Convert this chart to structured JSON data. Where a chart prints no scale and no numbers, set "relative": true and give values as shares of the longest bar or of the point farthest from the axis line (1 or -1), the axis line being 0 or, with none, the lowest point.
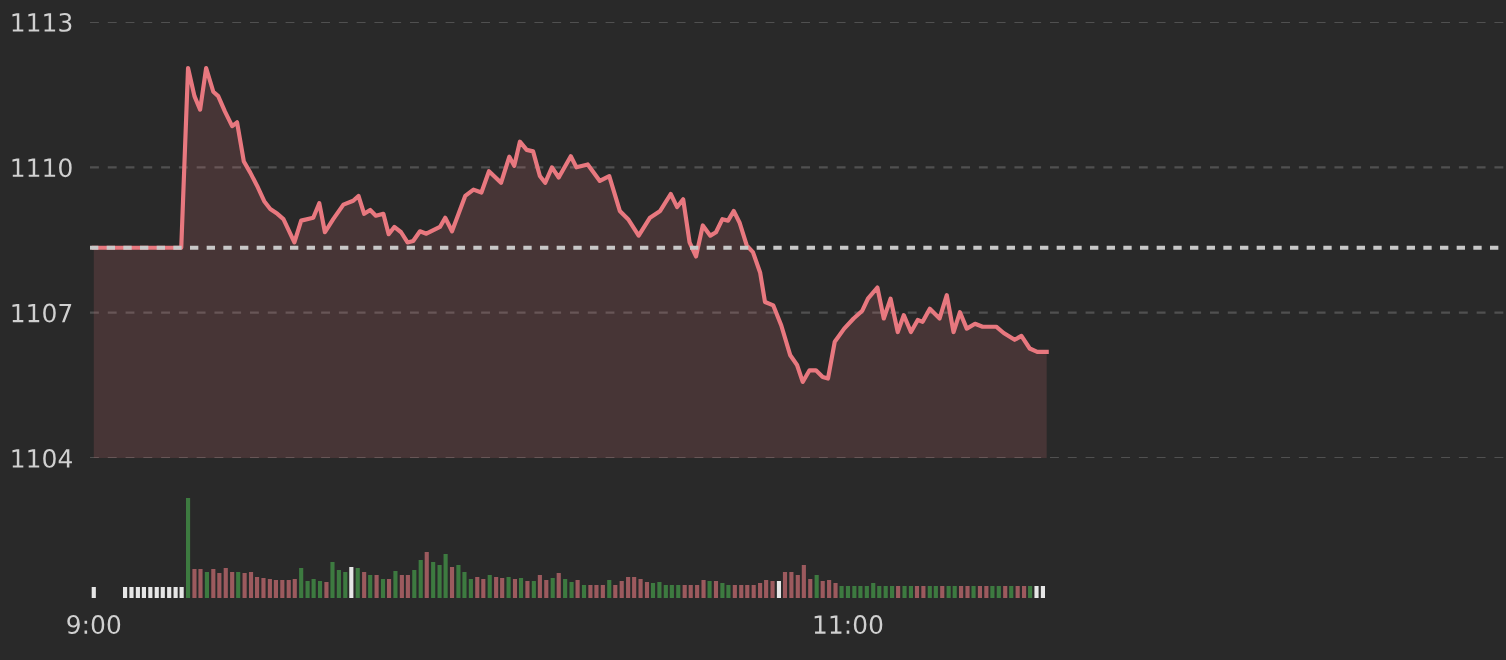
{
  "chart_data": [
    {
      "type": "area",
      "color": "#e8787f",
      "grid": "y",
      "tick_labels": "y",
      "xlim": [
        8.99,
        12.745
      ],
      "ylim": [
        1104,
        1113
      ],
      "yticks": [
        1104,
        1107,
        1110,
        1113
      ],
      "ref_lines": [
        {
          "axis": "y",
          "value": 1108.34,
          "color": "#c8c8c8",
          "line_style": "dotted"
        }
      ],
      "x": [
        9.0,
        9.232,
        9.25,
        9.267,
        9.282,
        9.298,
        9.317,
        9.33,
        9.348,
        9.367,
        9.38,
        9.398,
        9.415,
        9.433,
        9.452,
        9.468,
        9.487,
        9.503,
        9.532,
        9.55,
        9.582,
        9.598,
        9.613,
        9.635,
        9.662,
        9.688,
        9.702,
        9.717,
        9.733,
        9.748,
        9.768,
        9.782,
        9.797,
        9.815,
        9.832,
        9.847,
        9.865,
        9.882,
        9.918,
        9.932,
        9.95,
        9.985,
        10.007,
        10.028,
        10.048,
        10.08,
        10.102,
        10.115,
        10.13,
        10.148,
        10.165,
        10.183,
        10.197,
        10.215,
        10.233,
        10.265,
        10.28,
        10.31,
        10.342,
        10.367,
        10.395,
        10.417,
        10.445,
        10.475,
        10.502,
        10.53,
        10.547,
        10.563,
        10.58,
        10.597,
        10.615,
        10.635,
        10.65,
        10.667,
        10.682,
        10.697,
        10.713,
        10.732,
        10.748,
        10.767,
        10.78,
        10.802,
        10.823,
        10.847,
        10.865,
        10.88,
        10.898,
        10.915,
        10.933,
        10.947,
        10.965,
        10.99,
        11.015,
        11.038,
        11.053,
        11.078,
        11.095,
        11.113,
        11.132,
        11.148,
        11.167,
        11.185,
        11.198,
        11.217,
        11.243,
        11.262,
        11.28,
        11.297,
        11.315,
        11.337,
        11.357,
        11.393,
        11.413,
        11.442,
        11.46,
        11.482,
        11.502,
        11.527
      ],
      "values": [
        1108.34,
        1108.34,
        1112.05,
        1111.47,
        1111.19,
        1112.05,
        1111.56,
        1111.47,
        1111.15,
        1110.85,
        1110.93,
        1110.12,
        1109.89,
        1109.62,
        1109.3,
        1109.14,
        1109.04,
        1108.93,
        1108.45,
        1108.9,
        1108.96,
        1109.26,
        1108.66,
        1108.93,
        1109.23,
        1109.31,
        1109.41,
        1109.04,
        1109.12,
        1109.0,
        1109.04,
        1108.62,
        1108.77,
        1108.66,
        1108.45,
        1108.48,
        1108.68,
        1108.63,
        1108.77,
        1108.96,
        1108.68,
        1109.41,
        1109.54,
        1109.48,
        1109.92,
        1109.68,
        1110.22,
        1110.03,
        1110.53,
        1110.36,
        1110.33,
        1109.82,
        1109.68,
        1110.0,
        1109.79,
        1110.23,
        1110.0,
        1110.06,
        1109.72,
        1109.82,
        1109.1,
        1108.93,
        1108.59,
        1108.96,
        1109.1,
        1109.45,
        1109.18,
        1109.34,
        1108.45,
        1108.16,
        1108.8,
        1108.59,
        1108.66,
        1108.93,
        1108.9,
        1109.1,
        1108.85,
        1108.38,
        1108.25,
        1107.83,
        1107.22,
        1107.15,
        1106.74,
        1106.12,
        1105.92,
        1105.57,
        1105.81,
        1105.81,
        1105.67,
        1105.64,
        1106.4,
        1106.67,
        1106.88,
        1107.04,
        1107.29,
        1107.52,
        1106.88,
        1107.29,
        1106.6,
        1106.95,
        1106.6,
        1106.85,
        1106.81,
        1107.08,
        1106.88,
        1107.36,
        1106.6,
        1107.01,
        1106.67,
        1106.77,
        1106.71,
        1106.71,
        1106.58,
        1106.44,
        1106.52,
        1106.26,
        1106.19,
        1106.19
      ]
    },
    {
      "type": "bar",
      "relative": true,
      "tick_labels": "x",
      "xlim": [
        8.99,
        12.745
      ],
      "xticks": [
        {
          "value": 9,
          "label": "9:00"
        },
        {
          "value": 11,
          "label": "11:00"
        }
      ],
      "x": [
        9.0,
        9.083,
        9.1,
        9.117,
        9.133,
        9.15,
        9.167,
        9.183,
        9.2,
        9.217,
        9.233,
        9.25,
        9.267,
        9.283,
        9.3,
        9.317,
        9.333,
        9.35,
        9.367,
        9.383,
        9.4,
        9.417,
        9.433,
        9.45,
        9.467,
        9.483,
        9.5,
        9.517,
        9.533,
        9.55,
        9.567,
        9.583,
        9.6,
        9.617,
        9.633,
        9.65,
        9.667,
        9.683,
        9.7,
        9.717,
        9.733,
        9.75,
        9.767,
        9.783,
        9.8,
        9.817,
        9.833,
        9.85,
        9.867,
        9.883,
        9.9,
        9.917,
        9.933,
        9.95,
        9.967,
        9.983,
        10.0,
        10.017,
        10.033,
        10.05,
        10.067,
        10.083,
        10.1,
        10.117,
        10.133,
        10.15,
        10.167,
        10.183,
        10.2,
        10.217,
        10.233,
        10.25,
        10.267,
        10.283,
        10.3,
        10.317,
        10.333,
        10.35,
        10.367,
        10.383,
        10.4,
        10.417,
        10.433,
        10.45,
        10.467,
        10.483,
        10.5,
        10.517,
        10.533,
        10.55,
        10.567,
        10.583,
        10.6,
        10.617,
        10.633,
        10.65,
        10.667,
        10.683,
        10.7,
        10.717,
        10.733,
        10.75,
        10.767,
        10.783,
        10.8,
        10.817,
        10.833,
        10.85,
        10.867,
        10.883,
        10.9,
        10.917,
        10.933,
        10.95,
        10.967,
        10.983,
        11.0,
        11.017,
        11.033,
        11.05,
        11.067,
        11.083,
        11.1,
        11.117,
        11.133,
        11.15,
        11.167,
        11.183,
        11.2,
        11.217,
        11.233,
        11.25,
        11.267,
        11.283,
        11.3,
        11.317,
        11.333,
        11.35,
        11.367,
        11.383,
        11.4,
        11.417,
        11.433,
        11.45,
        11.467,
        11.483,
        11.5,
        11.517
      ],
      "values": [
        0.11,
        0.11,
        0.11,
        0.11,
        0.11,
        0.11,
        0.11,
        0.11,
        0.11,
        0.11,
        0.11,
        1.0,
        0.29,
        0.29,
        0.26,
        0.29,
        0.25,
        0.3,
        0.26,
        0.26,
        0.25,
        0.26,
        0.21,
        0.2,
        0.19,
        0.18,
        0.18,
        0.18,
        0.19,
        0.3,
        0.17,
        0.19,
        0.17,
        0.16,
        0.36,
        0.28,
        0.26,
        0.31,
        0.3,
        0.26,
        0.23,
        0.23,
        0.19,
        0.19,
        0.27,
        0.23,
        0.23,
        0.28,
        0.38,
        0.46,
        0.36,
        0.33,
        0.44,
        0.31,
        0.33,
        0.26,
        0.19,
        0.21,
        0.19,
        0.23,
        0.21,
        0.2,
        0.21,
        0.19,
        0.2,
        0.17,
        0.17,
        0.23,
        0.18,
        0.2,
        0.25,
        0.19,
        0.16,
        0.18,
        0.13,
        0.13,
        0.13,
        0.13,
        0.18,
        0.13,
        0.17,
        0.21,
        0.21,
        0.19,
        0.16,
        0.15,
        0.16,
        0.13,
        0.13,
        0.13,
        0.13,
        0.13,
        0.13,
        0.18,
        0.17,
        0.17,
        0.15,
        0.13,
        0.13,
        0.13,
        0.13,
        0.13,
        0.15,
        0.18,
        0.17,
        0.17,
        0.26,
        0.26,
        0.23,
        0.33,
        0.19,
        0.23,
        0.17,
        0.18,
        0.15,
        0.12,
        0.12,
        0.12,
        0.12,
        0.12,
        0.15,
        0.12,
        0.12,
        0.12,
        0.12,
        0.12,
        0.12,
        0.12,
        0.12,
        0.12,
        0.12,
        0.12,
        0.12,
        0.12,
        0.12,
        0.12,
        0.12,
        0.12,
        0.12,
        0.12,
        0.12,
        0.12,
        0.12,
        0.12,
        0.12,
        0.12,
        0.12,
        0.12
      ],
      "colors": [
        "#e6e6e6",
        "#e6e6e6",
        "#e6e6e6",
        "#e6e6e6",
        "#e6e6e6",
        "#e6e6e6",
        "#e6e6e6",
        "#e6e6e6",
        "#e6e6e6",
        "#e6e6e6",
        "#e6e6e6",
        "#3d7a40",
        "#9c5a5e",
        "#9c5a5e",
        "#3d7a40",
        "#9c5a5e",
        "#9c5a5e",
        "#9c5a5e",
        "#9c5a5e",
        "#3d7a40",
        "#9c5a5e",
        "#9c5a5e",
        "#9c5a5e",
        "#9c5a5e",
        "#9c5a5e",
        "#9c5a5e",
        "#9c5a5e",
        "#9c5a5e",
        "#9c5a5e",
        "#3d7a40",
        "#3d7a40",
        "#3d7a40",
        "#3d7a40",
        "#9c5a5e",
        "#3d7a40",
        "#3d7a40",
        "#3d7a40",
        "#e6e6e6",
        "#3d7a40",
        "#9c5a5e",
        "#3d7a40",
        "#9c5a5e",
        "#3d7a40",
        "#9c5a5e",
        "#3d7a40",
        "#9c5a5e",
        "#9c5a5e",
        "#3d7a40",
        "#3d7a40",
        "#9c5a5e",
        "#3d7a40",
        "#3d7a40",
        "#3d7a40",
        "#9c5a5e",
        "#3d7a40",
        "#3d7a40",
        "#3d7a40",
        "#9c5a5e",
        "#9c5a5e",
        "#3d7a40",
        "#9c5a5e",
        "#9c5a5e",
        "#3d7a40",
        "#9c5a5e",
        "#3d7a40",
        "#9c5a5e",
        "#3d7a40",
        "#9c5a5e",
        "#9c5a5e",
        "#3d7a40",
        "#9c5a5e",
        "#3d7a40",
        "#3d7a40",
        "#9c5a5e",
        "#3d7a40",
        "#9c5a5e",
        "#9c5a5e",
        "#9c5a5e",
        "#3d7a40",
        "#9c5a5e",
        "#9c5a5e",
        "#9c5a5e",
        "#9c5a5e",
        "#9c5a5e",
        "#9c5a5e",
        "#3d7a40",
        "#3d7a40",
        "#3d7a40",
        "#3d7a40",
        "#3d7a40",
        "#9c5a5e",
        "#9c5a5e",
        "#9c5a5e",
        "#9c5a5e",
        "#3d7a40",
        "#9c5a5e",
        "#3d7a40",
        "#3d7a40",
        "#9c5a5e",
        "#9c5a5e",
        "#9c5a5e",
        "#9c5a5e",
        "#9c5a5e",
        "#9c5a5e",
        "#9c5a5e",
        "#e6e6e6",
        "#9c5a5e",
        "#9c5a5e",
        "#9c5a5e",
        "#9c5a5e",
        "#9c5a5e",
        "#3d7a40",
        "#9c5a5e",
        "#9c5a5e",
        "#9c5a5e",
        "#3d7a40",
        "#3d7a40",
        "#3d7a40",
        "#3d7a40",
        "#3d7a40",
        "#3d7a40",
        "#3d7a40",
        "#3d7a40",
        "#3d7a40",
        "#9c5a5e",
        "#3d7a40",
        "#3d7a40",
        "#9c5a5e",
        "#9c5a5e",
        "#3d7a40",
        "#3d7a40",
        "#9c5a5e",
        "#3d7a40",
        "#3d7a40",
        "#9c5a5e",
        "#9c5a5e",
        "#3d7a40",
        "#9c5a5e",
        "#9c5a5e",
        "#3d7a40",
        "#3d7a40",
        "#9c5a5e",
        "#3d7a40",
        "#9c5a5e",
        "#9c5a5e",
        "#3d7a40",
        "#e6e6e6",
        "#e6e6e6"
      ]
    }
  ]
}
